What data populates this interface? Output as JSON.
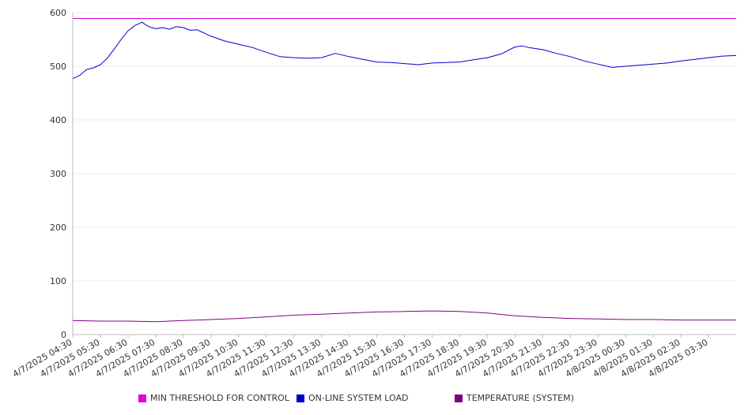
{
  "colors": {
    "threshold": "#e000e0",
    "load": "#0000cc",
    "temperature": "#800080",
    "grid": "#eeeeee",
    "axis": "#bbbbbb"
  },
  "chart_data": {
    "type": "line",
    "ylim": [
      0,
      600
    ],
    "y_ticks": [
      "0",
      "100",
      "200",
      "300",
      "400",
      "500",
      "600"
    ],
    "x_tick_labels": [
      "4/7/2025 04:30",
      "4/7/2025 05:30",
      "4/7/2025 06:30",
      "4/7/2025 07:30",
      "4/7/2025 08:30",
      "4/7/2025 09:30",
      "4/7/2025 10:30",
      "4/7/2025 11:30",
      "4/7/2025 12:30",
      "4/7/2025 13:30",
      "4/7/2025 14:30",
      "4/7/2025 15:30",
      "4/7/2025 16:30",
      "4/7/2025 17:30",
      "4/7/2025 18:30",
      "4/7/2025 19:30",
      "4/7/2025 20:30",
      "4/7/2025 21:30",
      "4/7/2025 22:30",
      "4/7/2025 23:30",
      "4/8/2025 00:30",
      "4/8/2025 01:30",
      "4/8/2025 02:30",
      "4/8/2025 03:30"
    ],
    "x_range": [
      "4/7/2025 04:30",
      "4/8/2025 04:30"
    ],
    "grid": true,
    "legend_position": "bottom",
    "series": [
      {
        "name": "MIN THRESHOLD FOR CONTROL",
        "x": [
          "4/7/2025 04:30",
          "4/8/2025 04:30"
        ],
        "values": [
          589,
          589
        ]
      },
      {
        "name": "ON-LINE SYSTEM LOAD",
        "x": [
          "4/7/2025 04:30",
          "4/7/2025 04:45",
          "4/7/2025 05:00",
          "4/7/2025 05:15",
          "4/7/2025 05:30",
          "4/7/2025 05:45",
          "4/7/2025 06:00",
          "4/7/2025 06:15",
          "4/7/2025 06:30",
          "4/7/2025 06:45",
          "4/7/2025 07:00",
          "4/7/2025 07:15",
          "4/7/2025 07:30",
          "4/7/2025 07:45",
          "4/7/2025 08:00",
          "4/7/2025 08:15",
          "4/7/2025 08:30",
          "4/7/2025 08:45",
          "4/7/2025 09:00",
          "4/7/2025 09:15",
          "4/7/2025 09:30",
          "4/7/2025 10:00",
          "4/7/2025 10:30",
          "4/7/2025 11:00",
          "4/7/2025 11:30",
          "4/7/2025 12:00",
          "4/7/2025 12:30",
          "4/7/2025 13:00",
          "4/7/2025 13:30",
          "4/7/2025 14:00",
          "4/7/2025 14:30",
          "4/7/2025 15:00",
          "4/7/2025 15:30",
          "4/7/2025 16:00",
          "4/7/2025 16:30",
          "4/7/2025 16:45",
          "4/7/2025 17:00",
          "4/7/2025 17:30",
          "4/7/2025 18:00",
          "4/7/2025 18:30",
          "4/7/2025 19:00",
          "4/7/2025 19:30",
          "4/7/2025 20:00",
          "4/7/2025 20:30",
          "4/7/2025 20:45",
          "4/7/2025 21:00",
          "4/7/2025 21:30",
          "4/7/2025 22:00",
          "4/7/2025 22:30",
          "4/7/2025 23:00",
          "4/7/2025 23:30",
          "4/8/2025 00:00",
          "4/8/2025 00:15",
          "4/8/2025 00:30",
          "4/8/2025 01:00",
          "4/8/2025 01:30",
          "4/8/2025 02:00",
          "4/8/2025 02:30",
          "4/8/2025 03:00",
          "4/8/2025 03:30",
          "4/8/2025 04:00",
          "4/8/2025 04:30"
        ],
        "values": [
          477,
          483,
          494,
          497,
          503,
          515,
          532,
          550,
          566,
          576,
          582,
          574,
          570,
          572,
          569,
          574,
          572,
          567,
          568,
          562,
          556,
          547,
          541,
          535,
          526,
          518,
          516,
          515,
          516,
          524,
          518,
          513,
          508,
          507,
          505,
          504,
          503,
          506,
          507,
          508,
          512,
          516,
          523,
          536,
          538,
          535,
          531,
          524,
          518,
          510,
          504,
          498,
          499,
          500,
          502,
          504,
          506,
          510,
          513,
          516,
          519,
          520
        ]
      },
      {
        "name": "TEMPERATURE (SYSTEM)",
        "x": [
          "4/7/2025 04:30",
          "4/7/2025 05:30",
          "4/7/2025 06:30",
          "4/7/2025 07:30",
          "4/7/2025 08:30",
          "4/7/2025 09:30",
          "4/7/2025 10:30",
          "4/7/2025 11:30",
          "4/7/2025 12:30",
          "4/7/2025 13:30",
          "4/7/2025 14:30",
          "4/7/2025 15:30",
          "4/7/2025 16:30",
          "4/7/2025 17:30",
          "4/7/2025 18:30",
          "4/7/2025 19:30",
          "4/7/2025 20:30",
          "4/7/2025 21:30",
          "4/7/2025 22:30",
          "4/7/2025 23:30",
          "4/8/2025 00:30",
          "4/8/2025 01:30",
          "4/8/2025 02:30",
          "4/8/2025 03:30",
          "4/8/2025 04:30"
        ],
        "values": [
          26,
          25,
          25,
          24,
          26,
          28,
          30,
          33,
          36,
          38,
          40,
          42,
          43,
          44,
          43,
          40,
          35,
          32,
          30,
          29,
          28,
          28,
          27,
          27,
          27
        ]
      }
    ]
  }
}
